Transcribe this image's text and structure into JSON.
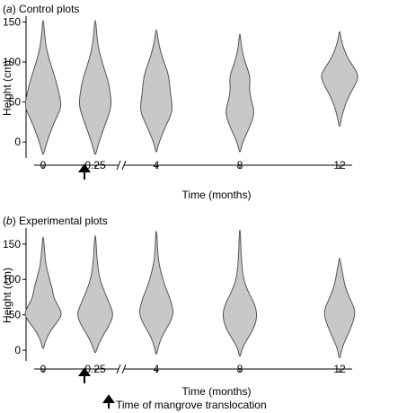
{
  "chart_data": [
    {
      "type": "violin",
      "panel_letter": "a",
      "title": "Control plots",
      "xlabel": "Time (months)",
      "ylabel": "Height (cm)",
      "ylim": [
        -20,
        155
      ],
      "yticks": [
        0,
        50,
        100,
        150
      ],
      "xtick_labels": [
        "0",
        "0.25",
        "4",
        "8",
        "12"
      ],
      "axis_break": "between 0.25 and 4",
      "arrow_at": "0.125",
      "violins": [
        {
          "x": "0",
          "min": -15,
          "max": 152,
          "profile": [
            [
              -15,
              0.5
            ],
            [
              0,
              4
            ],
            [
              20,
              10
            ],
            [
              40,
              18
            ],
            [
              48,
              19
            ],
            [
              60,
              17
            ],
            [
              75,
              14
            ],
            [
              90,
              10
            ],
            [
              105,
              6
            ],
            [
              120,
              3
            ],
            [
              135,
              1.5
            ],
            [
              152,
              0.5
            ]
          ]
        },
        {
          "x": "0.25",
          "min": -15,
          "max": 152,
          "profile": [
            [
              -15,
              0.5
            ],
            [
              0,
              4
            ],
            [
              20,
              10
            ],
            [
              40,
              16
            ],
            [
              50,
              17
            ],
            [
              60,
              16
            ],
            [
              75,
              14
            ],
            [
              90,
              10
            ],
            [
              105,
              6
            ],
            [
              120,
              3
            ],
            [
              135,
              1.5
            ],
            [
              152,
              0.5
            ]
          ]
        },
        {
          "x": "4",
          "min": -12,
          "max": 140,
          "profile": [
            [
              -12,
              0.5
            ],
            [
              0,
              3
            ],
            [
              20,
              10
            ],
            [
              35,
              16
            ],
            [
              45,
              17
            ],
            [
              60,
              15
            ],
            [
              75,
              14
            ],
            [
              88,
              12
            ],
            [
              100,
              8
            ],
            [
              115,
              4
            ],
            [
              130,
              1.5
            ],
            [
              140,
              0.5
            ]
          ]
        },
        {
          "x": "8",
          "min": -12,
          "max": 135,
          "profile": [
            [
              -12,
              0.5
            ],
            [
              0,
              3
            ],
            [
              15,
              9
            ],
            [
              30,
              14
            ],
            [
              40,
              15
            ],
            [
              52,
              12
            ],
            [
              65,
              10
            ],
            [
              80,
              11
            ],
            [
              92,
              8
            ],
            [
              105,
              4
            ],
            [
              120,
              1.5
            ],
            [
              135,
              0.5
            ]
          ]
        },
        {
          "x": "12",
          "min": 20,
          "max": 138,
          "profile": [
            [
              20,
              0.5
            ],
            [
              35,
              3
            ],
            [
              50,
              7
            ],
            [
              62,
              12
            ],
            [
              72,
              17
            ],
            [
              82,
              20
            ],
            [
              92,
              16
            ],
            [
              102,
              10
            ],
            [
              112,
              6
            ],
            [
              122,
              3
            ],
            [
              132,
              1
            ],
            [
              138,
              0.5
            ]
          ]
        }
      ]
    },
    {
      "type": "violin",
      "panel_letter": "b",
      "title": "Experimental plots",
      "xlabel": "Time (months)",
      "ylabel": "Height (cm)",
      "ylim": [
        -15,
        170
      ],
      "yticks": [
        0,
        50,
        100,
        150
      ],
      "xtick_labels": [
        "0",
        "0.25",
        "4",
        "8",
        "12"
      ],
      "axis_break": "between 0.25 and 4",
      "arrow_at": "0.125",
      "violins": [
        {
          "x": "0",
          "min": 3,
          "max": 160,
          "profile": [
            [
              3,
              0.5
            ],
            [
              15,
              3
            ],
            [
              28,
              8
            ],
            [
              38,
              14
            ],
            [
              48,
              19
            ],
            [
              55,
              19
            ],
            [
              65,
              15
            ],
            [
              75,
              11
            ],
            [
              85,
              10
            ],
            [
              95,
              8
            ],
            [
              105,
              6
            ],
            [
              120,
              3
            ],
            [
              140,
              1.5
            ],
            [
              160,
              0.5
            ]
          ]
        },
        {
          "x": "0.25",
          "min": -3,
          "max": 162,
          "profile": [
            [
              -3,
              0.5
            ],
            [
              10,
              4
            ],
            [
              25,
              10
            ],
            [
              38,
              16
            ],
            [
              50,
              19
            ],
            [
              60,
              17
            ],
            [
              72,
              13
            ],
            [
              85,
              9
            ],
            [
              100,
              5
            ],
            [
              115,
              3
            ],
            [
              135,
              1.5
            ],
            [
              162,
              0.5
            ]
          ]
        },
        {
          "x": "4",
          "min": -5,
          "max": 168,
          "profile": [
            [
              -5,
              0.5
            ],
            [
              10,
              3
            ],
            [
              25,
              8
            ],
            [
              40,
              15
            ],
            [
              52,
              18
            ],
            [
              62,
              17
            ],
            [
              75,
              14
            ],
            [
              88,
              10
            ],
            [
              100,
              7
            ],
            [
              115,
              4
            ],
            [
              130,
              2
            ],
            [
              150,
              1
            ],
            [
              168,
              0.5
            ]
          ]
        },
        {
          "x": "8",
          "min": -8,
          "max": 170,
          "profile": [
            [
              -8,
              0.5
            ],
            [
              5,
              3
            ],
            [
              20,
              10
            ],
            [
              35,
              16
            ],
            [
              48,
              18
            ],
            [
              60,
              17
            ],
            [
              72,
              13
            ],
            [
              85,
              8
            ],
            [
              100,
              4
            ],
            [
              120,
              2
            ],
            [
              145,
              1
            ],
            [
              170,
              0.5
            ]
          ]
        },
        {
          "x": "12",
          "min": -10,
          "max": 130,
          "profile": [
            [
              -10,
              0.5
            ],
            [
              5,
              3
            ],
            [
              20,
              8
            ],
            [
              35,
              13
            ],
            [
              48,
              16
            ],
            [
              58,
              16
            ],
            [
              70,
              12
            ],
            [
              82,
              8
            ],
            [
              95,
              5
            ],
            [
              110,
              3
            ],
            [
              120,
              1.5
            ],
            [
              130,
              0.5
            ]
          ]
        }
      ]
    }
  ],
  "annotation": {
    "text": "Time of mangrove translocation",
    "arrow": "up-arrow"
  }
}
